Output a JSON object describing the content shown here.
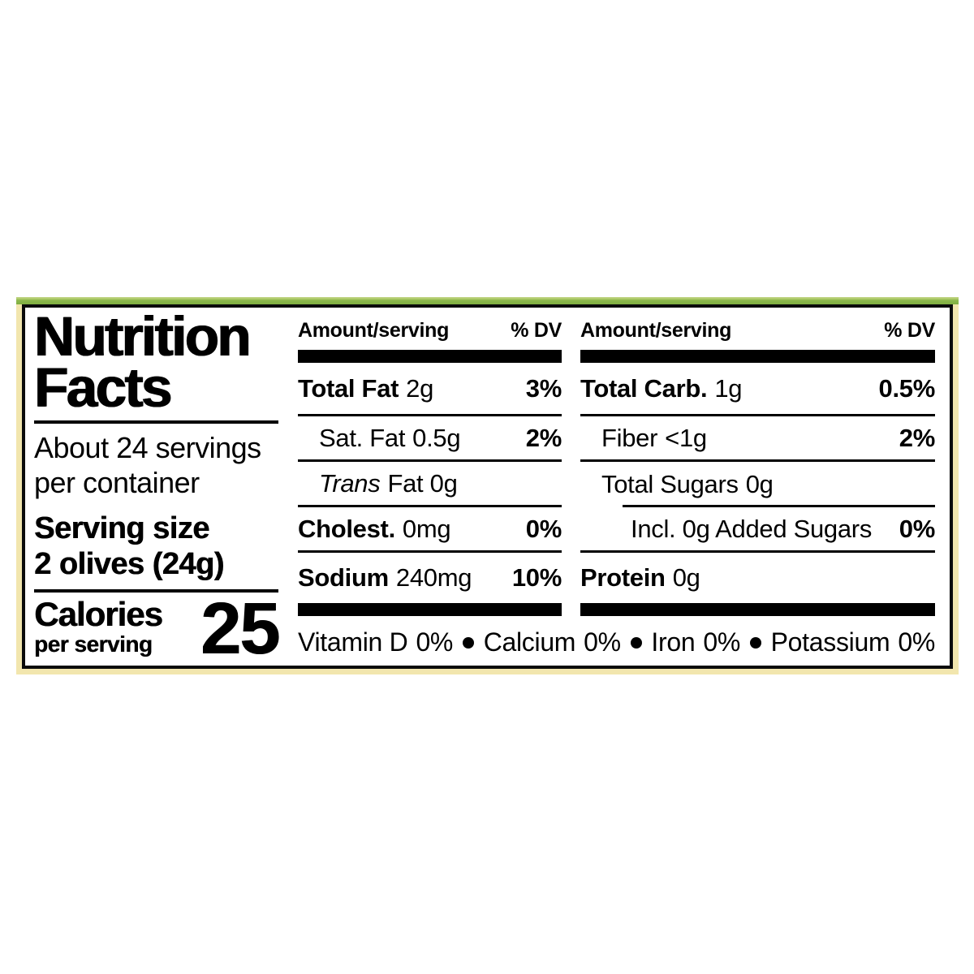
{
  "nutrition_label": {
    "title_line1": "Nutrition",
    "title_line2": "Facts",
    "servings_line1": "About 24 servings",
    "servings_line2": "per container",
    "serving_size_label": "Serving size",
    "serving_size_value": "2 olives (24g)",
    "calories_label": "Calories",
    "calories_sublabel": "per serving",
    "calories_value": "25",
    "column_left": {
      "header_amount": "Amount/serving",
      "header_dv": "% DV",
      "rows": [
        {
          "name": "Total Fat",
          "value": "2g",
          "dv": "3%"
        },
        {
          "name": "Sat. Fat",
          "value": "0.5g",
          "dv": "2%"
        },
        {
          "name": "Trans",
          "value": "Fat 0g",
          "dv": ""
        },
        {
          "name": "Cholest.",
          "value": "0mg",
          "dv": "0%"
        },
        {
          "name": "Sodium",
          "value": "240mg",
          "dv": "10%"
        }
      ]
    },
    "column_right": {
      "header_amount": "Amount/serving",
      "header_dv": "% DV",
      "rows": [
        {
          "name": "Total Carb.",
          "value": "1g",
          "dv": "0.5%"
        },
        {
          "name": "Fiber",
          "value": "<1g",
          "dv": "2%"
        },
        {
          "name": "Total Sugars",
          "value": "0g",
          "dv": ""
        },
        {
          "name": "Incl. 0g Added Sugars",
          "value": "",
          "dv": "0%"
        },
        {
          "name": "Protein",
          "value": "0g",
          "dv": ""
        }
      ]
    },
    "micronutrients": [
      {
        "name": "Vitamin D",
        "value": "0%"
      },
      {
        "name": "Calcium",
        "value": "0%"
      },
      {
        "name": "Iron",
        "value": "0%"
      },
      {
        "name": "Potassium",
        "value": "0%"
      }
    ],
    "colors": {
      "accent_green": "#8cb84c",
      "accent_cream": "#f2e6ae",
      "rule_black": "#000000",
      "background": "#ffffff"
    }
  }
}
